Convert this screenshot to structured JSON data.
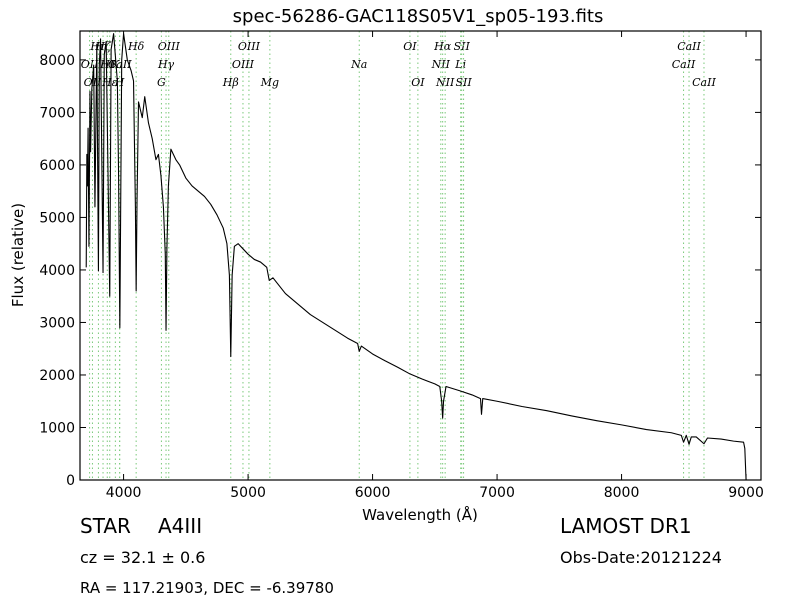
{
  "chart_data": {
    "type": "line",
    "title": "spec-56286-GAC118S05V1_sp05-193.fits",
    "xlabel": "Wavelength (Å)",
    "ylabel": "Flux (relative)",
    "xlim": [
      3650,
      9120
    ],
    "ylim": [
      0,
      8550
    ],
    "xticks": [
      4000,
      5000,
      6000,
      7000,
      8000,
      9000
    ],
    "yticks": [
      0,
      1000,
      2000,
      3000,
      4000,
      5000,
      6000,
      7000,
      8000
    ],
    "grid": false,
    "series": [
      {
        "color": "#000000",
        "points": [
          [
            3700,
            4050
          ],
          [
            3705,
            6200
          ],
          [
            3710,
            5600
          ],
          [
            3715,
            6700
          ],
          [
            3722,
            4450
          ],
          [
            3730,
            7400
          ],
          [
            3735,
            6250
          ],
          [
            3745,
            7450
          ],
          [
            3760,
            7900
          ],
          [
            3770,
            5200
          ],
          [
            3785,
            8300
          ],
          [
            3798,
            3980
          ],
          [
            3805,
            7900
          ],
          [
            3815,
            8400
          ],
          [
            3835,
            3950
          ],
          [
            3845,
            8100
          ],
          [
            3860,
            8350
          ],
          [
            3889,
            3500
          ],
          [
            3900,
            8200
          ],
          [
            3920,
            8500
          ],
          [
            3950,
            7600
          ],
          [
            3960,
            5800
          ],
          [
            3970,
            2900
          ],
          [
            3985,
            8000
          ],
          [
            4000,
            8500
          ],
          [
            4030,
            8000
          ],
          [
            4060,
            7800
          ],
          [
            4080,
            7600
          ],
          [
            4095,
            5200
          ],
          [
            4101,
            3600
          ],
          [
            4108,
            5300
          ],
          [
            4120,
            7200
          ],
          [
            4150,
            6900
          ],
          [
            4170,
            7300
          ],
          [
            4200,
            6800
          ],
          [
            4230,
            6500
          ],
          [
            4260,
            6100
          ],
          [
            4280,
            6200
          ],
          [
            4300,
            5800
          ],
          [
            4320,
            5200
          ],
          [
            4335,
            4300
          ],
          [
            4341,
            2850
          ],
          [
            4348,
            4400
          ],
          [
            4360,
            5600
          ],
          [
            4380,
            6300
          ],
          [
            4400,
            6200
          ],
          [
            4420,
            6100
          ],
          [
            4450,
            6000
          ],
          [
            4500,
            5750
          ],
          [
            4550,
            5600
          ],
          [
            4600,
            5500
          ],
          [
            4650,
            5400
          ],
          [
            4700,
            5250
          ],
          [
            4750,
            5050
          ],
          [
            4800,
            4800
          ],
          [
            4830,
            4500
          ],
          [
            4850,
            3900
          ],
          [
            4861,
            2350
          ],
          [
            4872,
            3900
          ],
          [
            4890,
            4450
          ],
          [
            4920,
            4500
          ],
          [
            4960,
            4400
          ],
          [
            5000,
            4300
          ],
          [
            5050,
            4200
          ],
          [
            5100,
            4150
          ],
          [
            5150,
            4050
          ],
          [
            5170,
            3800
          ],
          [
            5200,
            3850
          ],
          [
            5250,
            3700
          ],
          [
            5300,
            3550
          ],
          [
            5400,
            3350
          ],
          [
            5500,
            3150
          ],
          [
            5600,
            3000
          ],
          [
            5700,
            2850
          ],
          [
            5800,
            2700
          ],
          [
            5880,
            2600
          ],
          [
            5893,
            2450
          ],
          [
            5910,
            2550
          ],
          [
            6000,
            2400
          ],
          [
            6100,
            2270
          ],
          [
            6200,
            2150
          ],
          [
            6300,
            2020
          ],
          [
            6400,
            1920
          ],
          [
            6500,
            1830
          ],
          [
            6540,
            1780
          ],
          [
            6555,
            1500
          ],
          [
            6563,
            1180
          ],
          [
            6570,
            1500
          ],
          [
            6590,
            1780
          ],
          [
            6700,
            1700
          ],
          [
            6800,
            1620
          ],
          [
            6867,
            1550
          ],
          [
            6875,
            1250
          ],
          [
            6885,
            1550
          ],
          [
            7000,
            1500
          ],
          [
            7200,
            1400
          ],
          [
            7400,
            1320
          ],
          [
            7600,
            1220
          ],
          [
            7800,
            1130
          ],
          [
            8000,
            1050
          ],
          [
            8200,
            960
          ],
          [
            8400,
            900
          ],
          [
            8480,
            850
          ],
          [
            8498,
            720
          ],
          [
            8520,
            850
          ],
          [
            8542,
            680
          ],
          [
            8560,
            820
          ],
          [
            8600,
            820
          ],
          [
            8662,
            690
          ],
          [
            8690,
            800
          ],
          [
            8800,
            780
          ],
          [
            8900,
            740
          ],
          [
            8980,
            720
          ],
          [
            8990,
            600
          ],
          [
            9000,
            0
          ]
        ]
      }
    ],
    "line_markers": [
      {
        "wl": 3727,
        "label": "OII",
        "row": 2
      },
      {
        "wl": 3750,
        "label": "OII",
        "row": 3
      },
      {
        "wl": 3798,
        "label": "Hη",
        "row": 1
      },
      {
        "wl": 3835,
        "label": "Hζ",
        "row": 1
      },
      {
        "wl": 3869,
        "label": "HI",
        "row": 2
      },
      {
        "wl": 3889,
        "label": "Hε",
        "row": 3
      },
      {
        "wl": 3934,
        "label": "K",
        "row": 2
      },
      {
        "wl": 3968,
        "label": "H",
        "row": 3
      },
      {
        "wl": 3969,
        "label": "CaII",
        "row": 2
      },
      {
        "wl": 4101,
        "label": "Hδ",
        "row": 1
      },
      {
        "wl": 4304,
        "label": "G",
        "row": 3
      },
      {
        "wl": 4341,
        "label": "Hγ",
        "row": 2
      },
      {
        "wl": 4363,
        "label": "OIII",
        "row": 1
      },
      {
        "wl": 4861,
        "label": "Hβ",
        "row": 3
      },
      {
        "wl": 4959,
        "label": "OIII",
        "row": 2
      },
      {
        "wl": 5007,
        "label": "OIII",
        "row": 1
      },
      {
        "wl": 5175,
        "label": "Mg",
        "row": 3
      },
      {
        "wl": 5893,
        "label": "Na",
        "row": 2
      },
      {
        "wl": 6300,
        "label": "OI",
        "row": 1
      },
      {
        "wl": 6364,
        "label": "OI",
        "row": 3
      },
      {
        "wl": 6548,
        "label": "NII",
        "row": 2
      },
      {
        "wl": 6563,
        "label": "Hα",
        "row": 1
      },
      {
        "wl": 6583,
        "label": "NII",
        "row": 3
      },
      {
        "wl": 6708,
        "label": "Li",
        "row": 2
      },
      {
        "wl": 6716,
        "label": "SII",
        "row": 1
      },
      {
        "wl": 6731,
        "label": "SII",
        "row": 3
      },
      {
        "wl": 8498,
        "label": "CaII",
        "row": 2
      },
      {
        "wl": 8542,
        "label": "CaII",
        "row": 1
      },
      {
        "wl": 8662,
        "label": "CaII",
        "row": 3
      }
    ]
  },
  "footer": {
    "object_type": "STAR",
    "subclass": "A4III",
    "survey": "LAMOST DR1",
    "cz": "cz = 32.1 ± 0.6",
    "obs_date": "Obs-Date:20121224",
    "radec": "RA = 117.21903, DEC = -6.39780"
  },
  "colors": {
    "spectrum": "#000000",
    "marker": "#7ac97a"
  }
}
